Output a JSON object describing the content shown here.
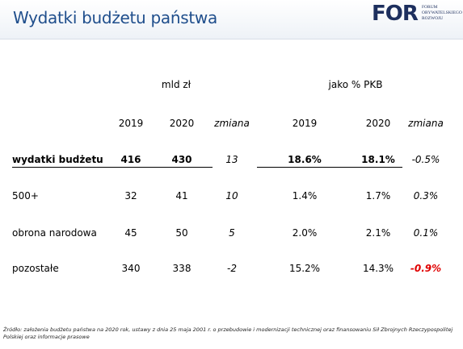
{
  "header": {
    "title": "Wydatki budżetu państwa",
    "logo": {
      "mark": "FOR",
      "lines": [
        "FORUM",
        "OBYWATELSKIEGO",
        "ROZWOJU"
      ]
    }
  },
  "table": {
    "groups": [
      "mld zł",
      "jako % PKB"
    ],
    "columns": [
      "2019",
      "2020",
      "zmiana",
      "2019",
      "2020",
      "zmiana"
    ],
    "rows": [
      {
        "label": "wydatki budżetu",
        "cells": [
          "416",
          "430",
          "13",
          "18.6%",
          "18.1%",
          "-0.5%"
        ]
      },
      {
        "label": "500+",
        "cells": [
          "32",
          "41",
          "10",
          "1.4%",
          "1.7%",
          "0.3%"
        ]
      },
      {
        "label": "obrona narodowa",
        "cells": [
          "45",
          "50",
          "5",
          "2.0%",
          "2.1%",
          "0.1%"
        ]
      },
      {
        "label": "pozostałe",
        "cells": [
          "340",
          "338",
          "-2",
          "15.2%",
          "14.3%",
          {
            "text": "-0.9%",
            "color": "#e00000"
          }
        ]
      }
    ]
  },
  "footer": [
    "Źródło: założenia budżetu państwa na 2020 rok, ustawy z dnia 25 maja 2001 r. o przebudowie i modernizacji technicznej oraz finansowaniu Sił Zbrojnych Rzeczypospolitej",
    "Polskiej oraz informacje prasowe"
  ]
}
